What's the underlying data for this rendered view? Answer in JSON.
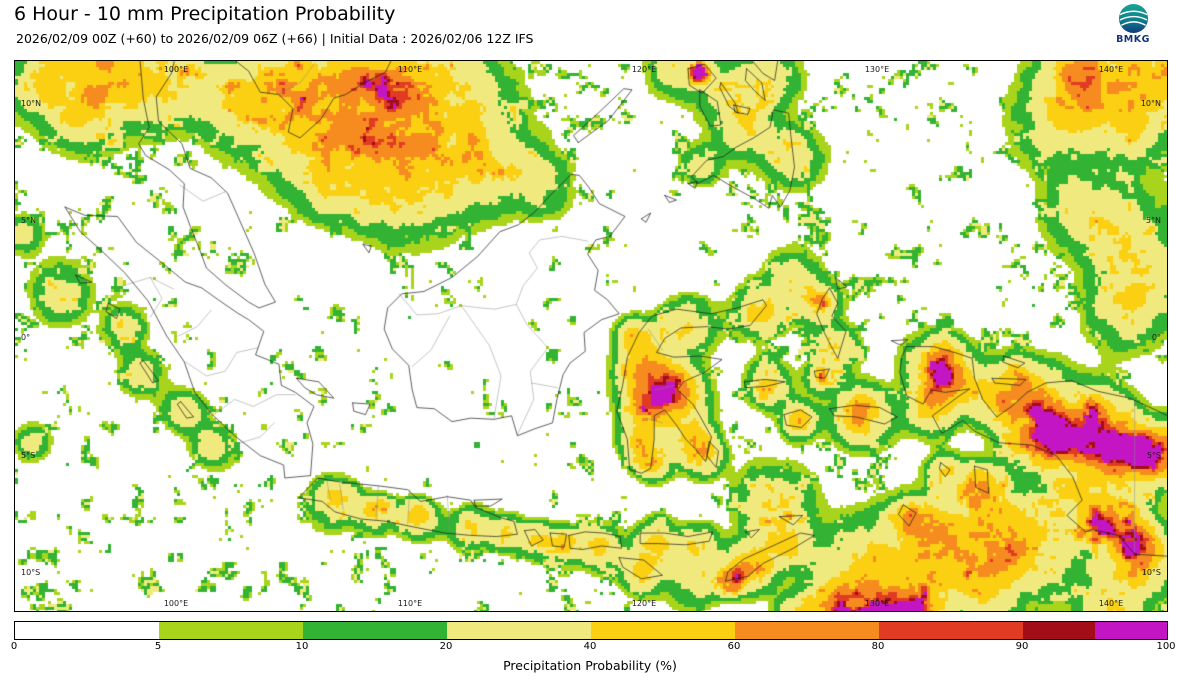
{
  "header": {
    "title": "6 Hour - 10 mm Precipitation Probability",
    "subtitle": "2026/02/09 00Z (+60) to 2026/02/09 06Z (+66) | Initial Data : 2026/02/06 12Z IFS"
  },
  "logo": {
    "label": "BMKG"
  },
  "map": {
    "lat_labels": [
      "10°N",
      "5°N",
      "0°",
      "5°S",
      "10°S"
    ],
    "lon_labels": [
      "100°E",
      "110°E",
      "120°E",
      "130°E",
      "140°E"
    ]
  },
  "colorbar": {
    "title": "Precipitation Probability (%)",
    "tick_labels": [
      "0",
      "5",
      "10",
      "20",
      "40",
      "60",
      "80",
      "90",
      "100"
    ],
    "tick_positions_pct": [
      0,
      12.5,
      25,
      37.5,
      50,
      62.5,
      75,
      87.5,
      100
    ],
    "segments": [
      {
        "range": "0-5",
        "color": "#ffffff",
        "width_pct": 12.5
      },
      {
        "range": "5-10",
        "color": "#a8d41c",
        "width_pct": 12.5
      },
      {
        "range": "10-20",
        "color": "#33b333",
        "width_pct": 12.5
      },
      {
        "range": "20-40",
        "color": "#f0ea7e",
        "width_pct": 12.5
      },
      {
        "range": "40-60",
        "color": "#fbd012",
        "width_pct": 12.5
      },
      {
        "range": "60-80",
        "color": "#f68b1f",
        "width_pct": 12.5
      },
      {
        "range": "80-90",
        "color": "#e23b23",
        "width_pct": 12.5
      },
      {
        "range": "90-95",
        "color": "#a30d18",
        "width_pct": 6.25
      },
      {
        "range": "95-100",
        "color": "#c415c4",
        "width_pct": 6.25
      }
    ]
  }
}
